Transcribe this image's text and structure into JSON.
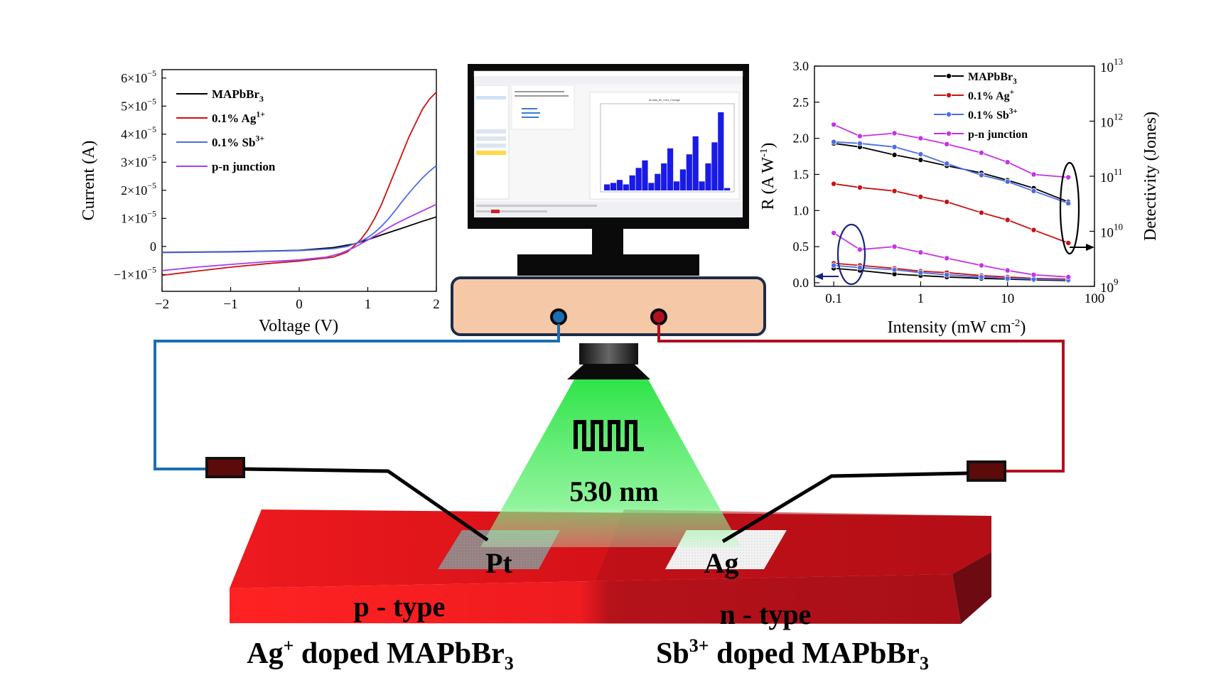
{
  "iv_chart": {
    "type": "line",
    "xlabel": "Voltage (V)",
    "ylabel": "Current (A)",
    "xlim": [
      -2,
      2
    ],
    "ylim": [
      -1.6e-05,
      6.3e-05
    ],
    "xticks": [
      "−2",
      "−1",
      "0",
      "1",
      "2"
    ],
    "yticks": [
      {
        "v": -1e-05,
        "base": "−1×10",
        "exp": "−5"
      },
      {
        "v": 0,
        "base": "0",
        "exp": ""
      },
      {
        "v": 1e-05,
        "base": "1×10",
        "exp": "−5"
      },
      {
        "v": 2e-05,
        "base": "2×10",
        "exp": "−5"
      },
      {
        "v": 3e-05,
        "base": "3×10",
        "exp": "−5"
      },
      {
        "v": 4e-05,
        "base": "4×10",
        "exp": "−5"
      },
      {
        "v": 5e-05,
        "base": "5×10",
        "exp": "−5"
      },
      {
        "v": 6e-05,
        "base": "6×10",
        "exp": "−5"
      }
    ],
    "legend": [
      {
        "base": "MAPbBr",
        "sub": "3",
        "sup": ""
      },
      {
        "base": "0.1% Ag",
        "sub": "",
        "sup": "1+"
      },
      {
        "base": "0.1% Sb",
        "sub": "",
        "sup": "3+"
      },
      {
        "base": "p-n junction",
        "sub": "",
        "sup": ""
      }
    ],
    "series": [
      {
        "color": "#000000",
        "x": [
          -2,
          -1,
          0,
          0.5,
          0.8,
          1.0,
          1.2,
          1.5,
          1.8,
          2.0
        ],
        "y": [
          -2.1e-06,
          -1.9e-06,
          -1.4e-06,
          -4e-07,
          9e-07,
          2.4e-06,
          4.1e-06,
          6.5e-06,
          9e-06,
          1.05e-05
        ]
      },
      {
        "color": "#cc1111",
        "x": [
          -2,
          -1.5,
          -1,
          -0.5,
          0,
          0.5,
          0.7,
          0.8,
          0.9,
          1.0,
          1.1,
          1.2,
          1.3,
          1.4,
          1.5,
          1.6,
          1.7,
          1.8,
          1.9,
          2.0
        ],
        "y": [
          -1.03e-05,
          -8.8e-06,
          -7.4e-06,
          -6.2e-06,
          -5.2e-06,
          -3.8e-06,
          -2e-06,
          2e-07,
          2.5e-06,
          5.8e-06,
          1e-05,
          1.5e-05,
          2.1e-05,
          2.7e-05,
          3.3e-05,
          3.9e-05,
          4.4e-05,
          4.9e-05,
          5.25e-05,
          5.5e-05
        ]
      },
      {
        "color": "#4d6de6",
        "x": [
          -2,
          -1,
          0,
          0.5,
          0.7,
          0.9,
          1.0,
          1.1,
          1.2,
          1.3,
          1.4,
          1.5,
          1.6,
          1.7,
          1.8,
          1.9,
          2.0
        ],
        "y": [
          -2.2e-06,
          -2e-06,
          -1.5e-06,
          -8e-07,
          0.0,
          1.8e-06,
          3.2e-06,
          5e-06,
          7.2e-06,
          9.8e-06,
          1.28e-05,
          1.6e-05,
          1.9e-05,
          2.18e-05,
          2.45e-05,
          2.68e-05,
          2.88e-05
        ]
      },
      {
        "color": "#a63cf0",
        "x": [
          -2,
          -1.5,
          -1,
          -0.5,
          0,
          0.4,
          0.6,
          0.8,
          1.0,
          1.2,
          1.4,
          1.6,
          1.8,
          2.0
        ],
        "y": [
          -8.6e-06,
          -7.4e-06,
          -6.4e-06,
          -5.5e-06,
          -4.8e-06,
          -3.8e-06,
          -2.5e-06,
          -4e-07,
          2.3e-06,
          5.2e-06,
          8e-06,
          1.04e-05,
          1.27e-05,
          1.5e-05
        ]
      }
    ]
  },
  "rd_chart": {
    "type": "line",
    "xlabel": "Intensity (mW cm",
    "xlabel_sup": "-2",
    "xlabel_end": ")",
    "ylabel": "R (A W",
    "ylabel_sup": "-1",
    "ylabel_end": ")",
    "y2label": "Detectivity (Jones)",
    "xscale": "log",
    "xlim": [
      0.06,
      100
    ],
    "ylim": [
      -0.05,
      3.0
    ],
    "y2scale": "log",
    "y2lim": [
      1000000000.0,
      10000000000000.0
    ],
    "xticks": [
      {
        "v": 0.1,
        "t": "0.1"
      },
      {
        "v": 1,
        "t": "1"
      },
      {
        "v": 10,
        "t": "10"
      },
      {
        "v": 100,
        "t": "100"
      }
    ],
    "yticks": [
      {
        "v": 0,
        "t": "0.0"
      },
      {
        "v": 0.5,
        "t": "0.5"
      },
      {
        "v": 1,
        "t": "1.0"
      },
      {
        "v": 1.5,
        "t": "1.5"
      },
      {
        "v": 2,
        "t": "2.0"
      },
      {
        "v": 2.5,
        "t": "2.5"
      },
      {
        "v": 3,
        "t": "3.0"
      }
    ],
    "y2ticks": [
      {
        "v": 1000000000.0,
        "t": "9"
      },
      {
        "v": 10000000000.0,
        "t": "10"
      },
      {
        "v": 100000000000.0,
        "t": "11"
      },
      {
        "v": 1000000000000.0,
        "t": "12"
      },
      {
        "v": 10000000000000.0,
        "t": "13"
      }
    ],
    "y2tick_base": "10",
    "legend": [
      {
        "base": "MAPbBr",
        "sub": "3",
        "sup": ""
      },
      {
        "base": "0.1% Ag",
        "sub": "",
        "sup": "+"
      },
      {
        "base": "0.1% Sb",
        "sub": "",
        "sup": "3+"
      },
      {
        "base": "p-n junction",
        "sub": "",
        "sup": ""
      }
    ],
    "x": [
      0.1,
      0.2,
      0.5,
      1,
      2,
      5,
      10,
      20,
      50
    ],
    "detectivity_series": [
      {
        "color": "#000000",
        "y": [
          1.93,
          1.88,
          1.77,
          1.7,
          1.62,
          1.52,
          1.42,
          1.31,
          1.12
        ]
      },
      {
        "color": "#cc1111",
        "y": [
          1.37,
          1.32,
          1.27,
          1.19,
          1.12,
          0.97,
          0.87,
          0.73,
          0.55
        ]
      },
      {
        "color": "#4d6de6",
        "y": [
          1.95,
          1.93,
          1.88,
          1.78,
          1.65,
          1.49,
          1.4,
          1.27,
          1.1
        ]
      },
      {
        "color": "#c433e6",
        "y": [
          2.19,
          2.03,
          2.07,
          2.0,
          1.92,
          1.8,
          1.67,
          1.5,
          1.46
        ]
      }
    ],
    "responsivity_series": [
      {
        "color": "#000000",
        "y": [
          0.2,
          0.17,
          0.12,
          0.1,
          0.08,
          0.06,
          0.05,
          0.04,
          0.03
        ]
      },
      {
        "color": "#cc1111",
        "y": [
          0.27,
          0.24,
          0.2,
          0.16,
          0.14,
          0.1,
          0.08,
          0.06,
          0.05
        ]
      },
      {
        "color": "#4d6de6",
        "y": [
          0.24,
          0.21,
          0.18,
          0.14,
          0.11,
          0.08,
          0.06,
          0.05,
          0.04
        ]
      },
      {
        "color": "#c433e6",
        "y": [
          0.69,
          0.46,
          0.5,
          0.42,
          0.34,
          0.24,
          0.17,
          0.11,
          0.08
        ]
      }
    ]
  },
  "monitor_plot": {
    "title": "All data_80_Cell1_CVstage",
    "y": [
      0.2,
      0.25,
      0.35,
      0.2,
      0.5,
      0.75,
      1.0,
      0.25,
      0.55,
      0.9,
      1.4,
      0.3,
      0.7,
      1.2,
      1.8,
      0.3,
      0.9,
      1.6,
      2.6,
      0.08
    ]
  },
  "device": {
    "light_label": "530 nm",
    "pt_label": "Pt",
    "ag_label": "Ag",
    "p_type": "p - type",
    "n_type": "n - type",
    "left_caption": {
      "a": "Ag",
      "sup": "+",
      "b": " doped MAPbBr",
      "sub": "3"
    },
    "right_caption": {
      "a": "Sb",
      "sup": "3+",
      "b": " doped MAPbBr",
      "sub": "3"
    }
  },
  "colors": {
    "light": "#22dd44",
    "crystal_p": "#e8141a",
    "crystal_n": "#b8101a",
    "wire_blue": "#1a6fb5",
    "wire_red": "#b01020",
    "meter_box": "#f5c8a8"
  }
}
